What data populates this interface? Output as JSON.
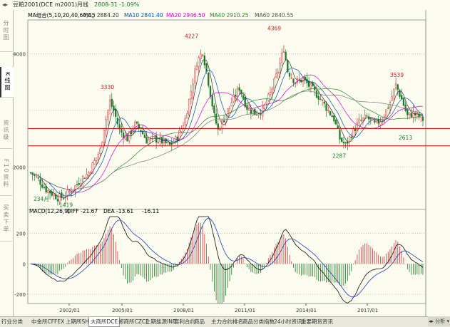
{
  "topbar": {
    "symbol": "豆粕2001(DCE m2001)",
    "period": "月线",
    "price": "2808",
    "change": "-31",
    "change_pct": "-1.09%"
  },
  "sidebar": {
    "tabs": [
      {
        "label": "分时图",
        "active": false
      },
      {
        "label": "K线图",
        "active": true
      },
      {
        "label": "资讯级",
        "active": false
      },
      {
        "label": "F10资料",
        "active": false
      },
      {
        "label": "买卖下单",
        "active": false
      }
    ]
  },
  "legend_main": {
    "indicator": "MA组合(5,10,20,40,60,0,)",
    "ma5": "MA5 2884.20",
    "ma10": "MA10 2841.40",
    "ma20": "MA20 2946.50",
    "ma40": "MA40 2910.25",
    "ma60": "MA60 2840.55"
  },
  "legend_macd": {
    "indicator": "MACD(12,26,9)",
    "diff": "DIFF -21.67",
    "dea": "DEA -13.61",
    "macd": "-16.11"
  },
  "colors": {
    "up": "#d0343a",
    "down": "#1e7a2a",
    "ma5": "#333333",
    "ma10": "#0055aa",
    "ma20": "#cc00cc",
    "ma40": "#2a8a2a",
    "ma60": "#777777",
    "hline": "#d81818"
  },
  "chart_data": {
    "type": "candlestick",
    "price_axis": {
      "ticks": [
        "4000",
        "2000"
      ],
      "range": [
        1300,
        4600
      ]
    },
    "macd_axis": {
      "ticks": [
        "200",
        "0",
        "-200"
      ],
      "range": [
        -260,
        310
      ]
    },
    "x_tick_labels": [
      "2002/01",
      "2005/01",
      "2008/01",
      "2011/01",
      "2014/01",
      "2017/01"
    ],
    "annotations": [
      {
        "label": "3330",
        "value": 3330
      },
      {
        "label": "4227",
        "value": 4227
      },
      {
        "label": "4369",
        "value": 4369
      },
      {
        "label": "3539",
        "value": 3539
      },
      {
        "label": "2287",
        "value": 2287
      },
      {
        "label": "2613",
        "value": 2613
      },
      {
        "label": "1419",
        "value": 1419
      },
      {
        "label": "234月",
        "value": 1650
      }
    ],
    "horizontal_lines": [
      2680,
      2375
    ],
    "series": [
      {
        "name": "MA5 2884.20"
      },
      {
        "name": "MA10 2841.40"
      },
      {
        "name": "MA20 2946.50"
      },
      {
        "name": "MA40 2910.25"
      },
      {
        "name": "MA60 2840.55"
      }
    ]
  },
  "bottom_tabs": [
    {
      "label": "行业分类",
      "active": false
    },
    {
      "label": "中金所CFFEX",
      "active": false
    },
    {
      "label": "上期所SHFE",
      "active": false
    },
    {
      "label": "大商所DCE",
      "active": true
    },
    {
      "label": "郑商所CZCE",
      "active": false
    },
    {
      "label": "上期能源INE",
      "active": false
    },
    {
      "label": "套利合约",
      "active": false
    },
    {
      "label": "商品",
      "active": false
    },
    {
      "label": "主力合约排名",
      "active": false
    },
    {
      "label": "商品分类指数",
      "active": false
    },
    {
      "label": "24小时资讯",
      "active": false
    },
    {
      "label": "重要期货资讯",
      "active": false
    }
  ],
  "scroll_label": "◂▸ 分析 ▾"
}
